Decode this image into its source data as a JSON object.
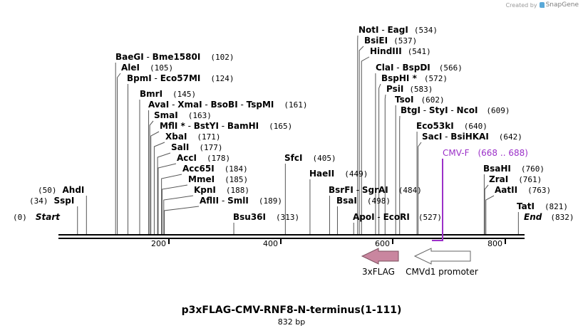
{
  "credit": {
    "created_by": "Created by",
    "brand": "SnapGene"
  },
  "map": {
    "title": "p3xFLAG-CMV-RNF8-N-terminus(1-111)",
    "length_label": "832 bp",
    "length": 832,
    "ticks": [
      "200",
      "400",
      "600",
      "800"
    ],
    "tick_values": [
      200,
      400,
      600,
      800
    ]
  },
  "sites": [
    {
      "parts": [
        "NotI",
        "EagI"
      ],
      "pos": 534,
      "pos_label": "(534)"
    },
    {
      "parts": [
        "BsiEI"
      ],
      "pos": 537,
      "pos_label": "(537)"
    },
    {
      "parts": [
        "HindIII"
      ],
      "pos": 541,
      "pos_label": "(541)"
    },
    {
      "parts": [
        "BaeGI",
        "Bme1580I"
      ],
      "pos": 102,
      "pos_label": "(102)"
    },
    {
      "parts": [
        "ClaI",
        "BspDI"
      ],
      "pos": 566,
      "pos_label": "(566)"
    },
    {
      "parts": [
        "AleI"
      ],
      "pos": 105,
      "pos_label": "(105)"
    },
    {
      "parts": [
        "BspHI *"
      ],
      "pos": 572,
      "pos_label": "(572)"
    },
    {
      "parts": [
        "BpmI",
        "Eco57MI"
      ],
      "pos": 124,
      "pos_label": "(124)"
    },
    {
      "parts": [
        "PsiI"
      ],
      "pos": 583,
      "pos_label": "(583)"
    },
    {
      "parts": [
        "BmrI"
      ],
      "pos": 145,
      "pos_label": "(145)"
    },
    {
      "parts": [
        "TsoI"
      ],
      "pos": 602,
      "pos_label": "(602)"
    },
    {
      "parts": [
        "AvaI",
        "XmaI",
        "BsoBI",
        "TspMI"
      ],
      "pos": 161,
      "pos_label": "(161)"
    },
    {
      "parts": [
        "BtgI",
        "StyI",
        "NcoI"
      ],
      "pos": 609,
      "pos_label": "(609)"
    },
    {
      "parts": [
        "SmaI"
      ],
      "pos": 163,
      "pos_label": "(163)"
    },
    {
      "parts": [
        "MflI *",
        "BstYI",
        "BamHI"
      ],
      "pos": 165,
      "pos_label": "(165)"
    },
    {
      "parts": [
        "Eco53kI"
      ],
      "pos": 640,
      "pos_label": "(640)"
    },
    {
      "parts": [
        "XbaI"
      ],
      "pos": 171,
      "pos_label": "(171)"
    },
    {
      "parts": [
        "SacI",
        "BsiHKAI"
      ],
      "pos": 642,
      "pos_label": "(642)"
    },
    {
      "parts": [
        "SalI"
      ],
      "pos": 177,
      "pos_label": "(177)"
    },
    {
      "parts": [
        "AccI"
      ],
      "pos": 178,
      "pos_label": "(178)"
    },
    {
      "parts": [
        "SfcI"
      ],
      "pos": 405,
      "pos_label": "(405)"
    },
    {
      "parts": [
        "Acc65I"
      ],
      "pos": 184,
      "pos_label": "(184)"
    },
    {
      "parts": [
        "BsaHI"
      ],
      "pos": 760,
      "pos_label": "(760)"
    },
    {
      "parts": [
        "HaeII"
      ],
      "pos": 449,
      "pos_label": "(449)"
    },
    {
      "parts": [
        "MmeI"
      ],
      "pos": 185,
      "pos_label": "(185)"
    },
    {
      "parts": [
        "ZraI"
      ],
      "pos": 761,
      "pos_label": "(761)"
    },
    {
      "parts": [
        "KpnI"
      ],
      "pos": 188,
      "pos_label": "(188)"
    },
    {
      "parts": [
        "BsrFI",
        "SgrAI"
      ],
      "pos": 484,
      "pos_label": "(484)"
    },
    {
      "parts": [
        "AhdI"
      ],
      "pos": 50,
      "pos_label": "(50)"
    },
    {
      "parts": [
        "AatII"
      ],
      "pos": 763,
      "pos_label": "(763)"
    },
    {
      "parts": [
        "AflII",
        "SmlI"
      ],
      "pos": 189,
      "pos_label": "(189)"
    },
    {
      "parts": [
        "SspI"
      ],
      "pos": 34,
      "pos_label": "(34)"
    },
    {
      "parts": [
        "BsaI"
      ],
      "pos": 498,
      "pos_label": "(498)"
    },
    {
      "parts": [
        "TatI"
      ],
      "pos": 821,
      "pos_label": "(821)"
    },
    {
      "parts": [
        "Start"
      ],
      "pos": 0,
      "pos_label": "(0)"
    },
    {
      "parts": [
        "Bsu36I"
      ],
      "pos": 313,
      "pos_label": "(313)"
    },
    {
      "parts": [
        "ApoI",
        "EcoRI"
      ],
      "pos": 527,
      "pos_label": "(527)"
    },
    {
      "parts": [
        "End"
      ],
      "pos": 832,
      "pos_label": "(832)"
    }
  ],
  "primer": {
    "name": "CMV-F",
    "range_label": "(668 .. 688)",
    "start": 668,
    "end": 688,
    "color": "#9b30c8"
  },
  "features": [
    {
      "name": "3xFLAG",
      "start": 553,
      "end": 618,
      "direction": "reverse",
      "fill": "#c9869f",
      "stroke": "#7a4f5e"
    },
    {
      "name": "CMVd1 promoter",
      "start": 626,
      "end": 727,
      "direction": "reverse",
      "fill": "#ffffff",
      "stroke": "#666666"
    }
  ]
}
